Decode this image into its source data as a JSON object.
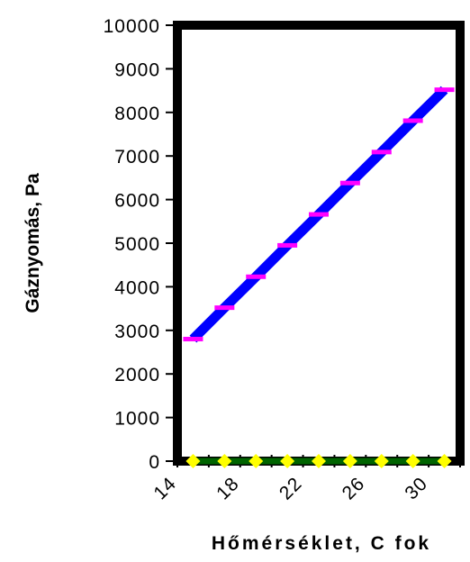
{
  "chart_data": {
    "type": "line",
    "xlabel": "Hőmérséklet, C fok",
    "ylabel": "Gáznyomás, Pa",
    "xlim": [
      14,
      32
    ],
    "ylim": [
      0,
      10000
    ],
    "x_ticks": [
      14,
      18,
      22,
      26,
      30
    ],
    "y_ticks": [
      0,
      1000,
      2000,
      3000,
      4000,
      5000,
      6000,
      7000,
      8000,
      9000,
      10000
    ],
    "grid": false,
    "legend": "none",
    "series": [
      {
        "color": "#0000ff",
        "marker": "dash",
        "marker_color": "#ff00ff",
        "x": [
          15,
          17,
          19,
          21,
          23,
          25,
          27,
          29,
          31
        ],
        "y": [
          2800,
          3520,
          4230,
          4950,
          5660,
          6380,
          7090,
          7810,
          8520
        ]
      },
      {
        "color": "#006400",
        "marker": "diamond",
        "marker_color": "#ffff00",
        "x": [
          15,
          17,
          19,
          21,
          23,
          25,
          27,
          29,
          31
        ],
        "y": [
          0,
          0,
          0,
          0,
          0,
          0,
          0,
          0,
          0
        ]
      }
    ]
  }
}
